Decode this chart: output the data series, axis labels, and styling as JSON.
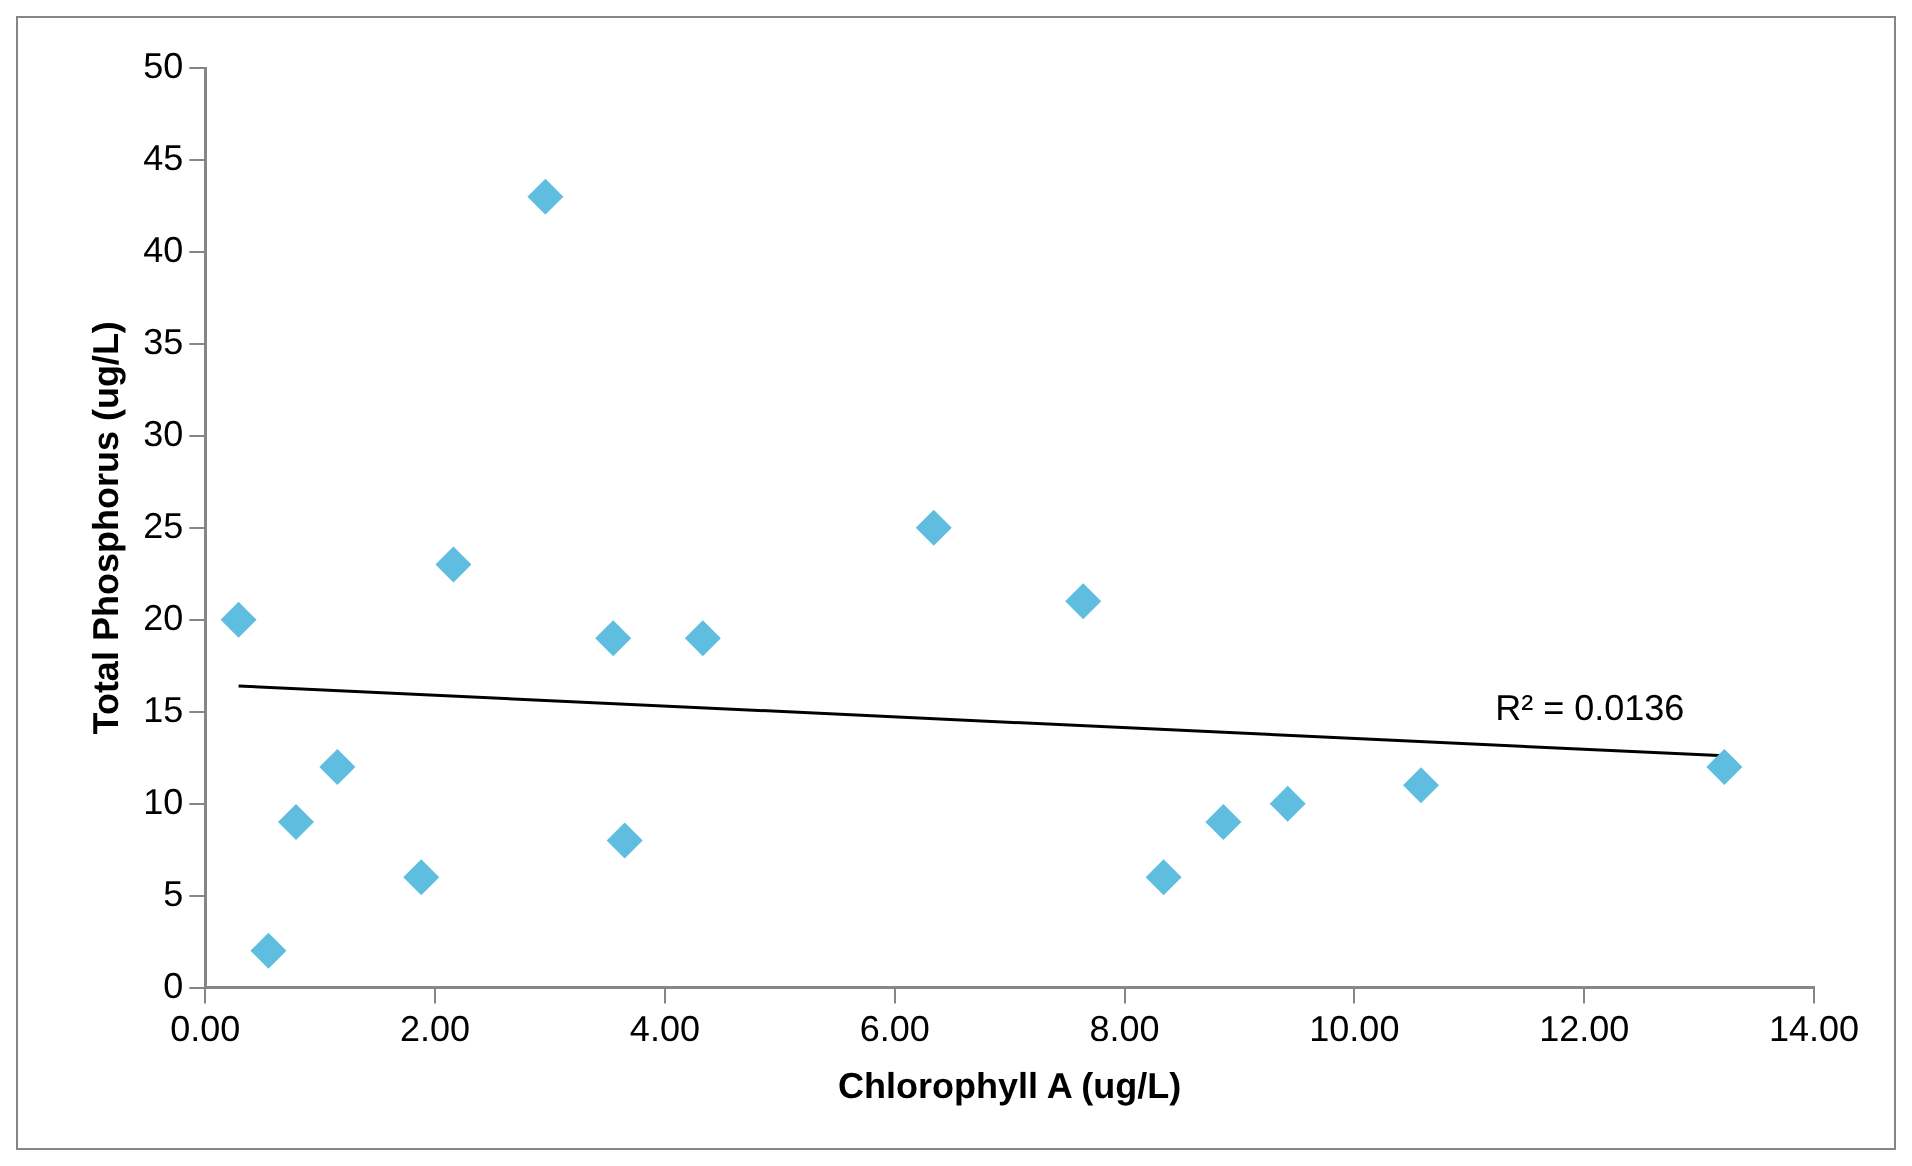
{
  "chart_data": {
    "type": "scatter",
    "xlabel": "Chlorophyll A (ug/L)",
    "ylabel": "Total Phosphorus (ug/L)",
    "xlim": [
      0,
      14
    ],
    "xticks": [
      {
        "value": 0,
        "label": "0.00"
      },
      {
        "value": 2,
        "label": "2.00"
      },
      {
        "value": 4,
        "label": "4.00"
      },
      {
        "value": 6,
        "label": "6.00"
      },
      {
        "value": 8,
        "label": "8.00"
      },
      {
        "value": 10,
        "label": "10.00"
      },
      {
        "value": 12,
        "label": "12.00"
      },
      {
        "value": 14,
        "label": "14.00"
      }
    ],
    "ylim": [
      0,
      50
    ],
    "yticks": [
      0,
      5,
      10,
      15,
      20,
      25,
      30,
      35,
      40,
      45,
      50
    ],
    "grid": false,
    "legend": false,
    "marker": "diamond",
    "series": [
      {
        "color": "#5fbedf",
        "x": [
          0.29,
          0.55,
          0.79,
          1.15,
          1.88,
          2.16,
          2.96,
          3.55,
          3.65,
          4.33,
          6.34,
          7.64,
          8.34,
          8.86,
          9.42,
          10.58,
          13.22
        ],
        "values": [
          20,
          2,
          9,
          12,
          6,
          23,
          43,
          19,
          8,
          19,
          25,
          21,
          6,
          9,
          10,
          11,
          12
        ]
      },
      {
        "type": "line",
        "color": "#000000",
        "marker": "none",
        "x": [
          0.29,
          13.22
        ],
        "values": [
          16.4,
          12.6
        ]
      }
    ],
    "annotations": [
      "R² = 0.0136"
    ]
  }
}
